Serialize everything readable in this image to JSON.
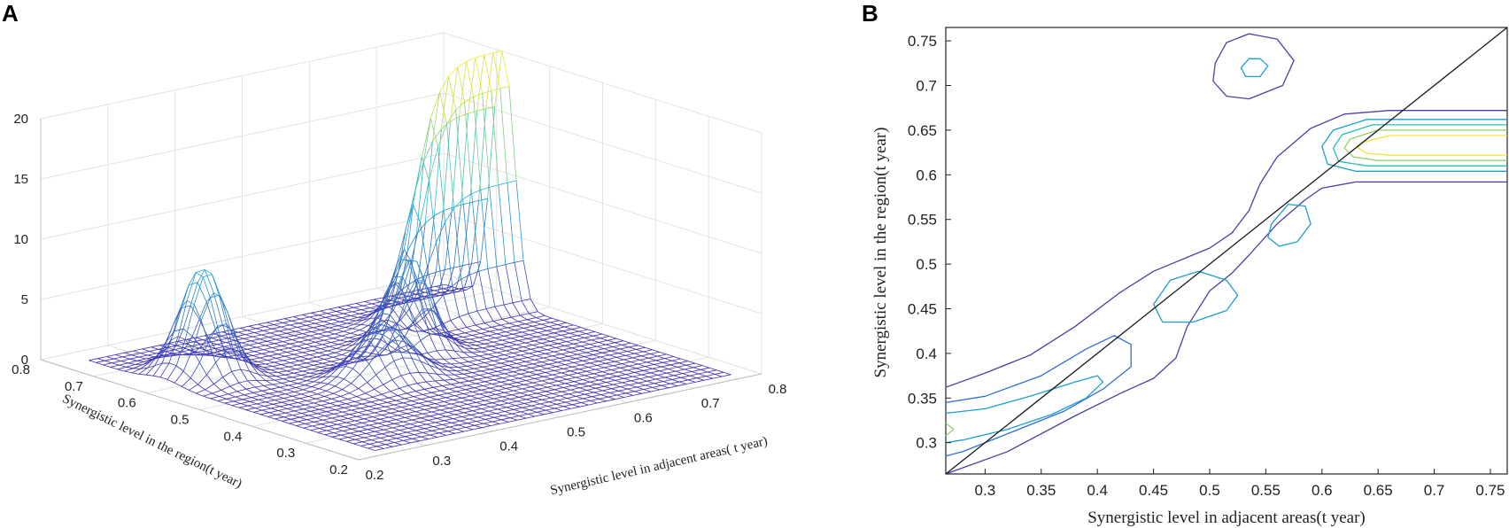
{
  "panels": {
    "a_label": "A",
    "b_label": "B"
  },
  "chart_data": [
    {
      "type": "surface",
      "panel": "A",
      "title": "",
      "xlabel": "Synergistic level in adjacent areas( t year)",
      "ylabel": "Synergistic level in the region(t year)",
      "x_ticks": [
        "0.2",
        "0.3",
        "0.4",
        "0.5",
        "0.6",
        "0.7",
        "0.8"
      ],
      "y_ticks": [
        "0.2",
        "0.3",
        "0.4",
        "0.5",
        "0.6",
        "0.7",
        "0.8"
      ],
      "z_ticks": [
        "0",
        "5",
        "10",
        "15",
        "20"
      ],
      "xlim": [
        0.2,
        0.8
      ],
      "ylim": [
        0.2,
        0.8
      ],
      "zlim": [
        0,
        20
      ],
      "peaks": [
        {
          "x": 0.3,
          "y": 0.62,
          "height": 9.0
        },
        {
          "x": 0.45,
          "y": 0.47,
          "height": 4.5
        },
        {
          "x": 0.55,
          "y": 0.55,
          "height": 8.0
        },
        {
          "x": 0.65,
          "y": 0.65,
          "height": 21.0
        }
      ],
      "colors": {
        "low": "#3d2fb0",
        "mid": "#22b8d8",
        "high": "#f5e82a"
      }
    },
    {
      "type": "contour",
      "panel": "B",
      "title": "",
      "xlabel": "Synergistic level in adjacent areas(t year)",
      "ylabel": "Synergistic level in the region(t year)",
      "x_ticks": [
        "0.3",
        "0.35",
        "0.4",
        "0.45",
        "0.5",
        "0.55",
        "0.6",
        "0.65",
        "0.7",
        "0.75"
      ],
      "y_ticks": [
        "0.3",
        "0.35",
        "0.4",
        "0.45",
        "0.5",
        "0.55",
        "0.6",
        "0.65",
        "0.7",
        "0.75"
      ],
      "xlim": [
        0.265,
        0.765
      ],
      "ylim": [
        0.265,
        0.765
      ],
      "diagonal": {
        "from": [
          0.265,
          0.265
        ],
        "to": [
          0.765,
          0.765
        ]
      },
      "contour_colors": [
        "#4a3fa6",
        "#2f6fd6",
        "#1b9fd0",
        "#25c0b0",
        "#8fd36a",
        "#f0e23a"
      ]
    }
  ]
}
